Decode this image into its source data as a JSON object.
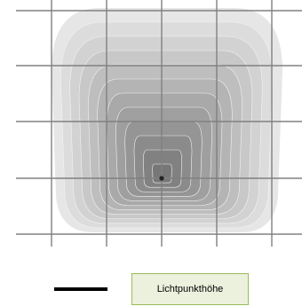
{
  "diagram": {
    "type": "isolux-contour-plot",
    "grid": true,
    "contour_levels": 12,
    "light_point": "center",
    "colors": {
      "background": "#ffffff",
      "grid": "#808080",
      "light_point": "#222222",
      "lightest_contour": "#e6e6e6",
      "darkest_contour": "#777777"
    }
  },
  "legend": {
    "line_color": "#000000",
    "label": "Lichtpunkthöhe",
    "label_box_border": "#9bbb59",
    "label_box_fill": "#ebf1dd"
  }
}
